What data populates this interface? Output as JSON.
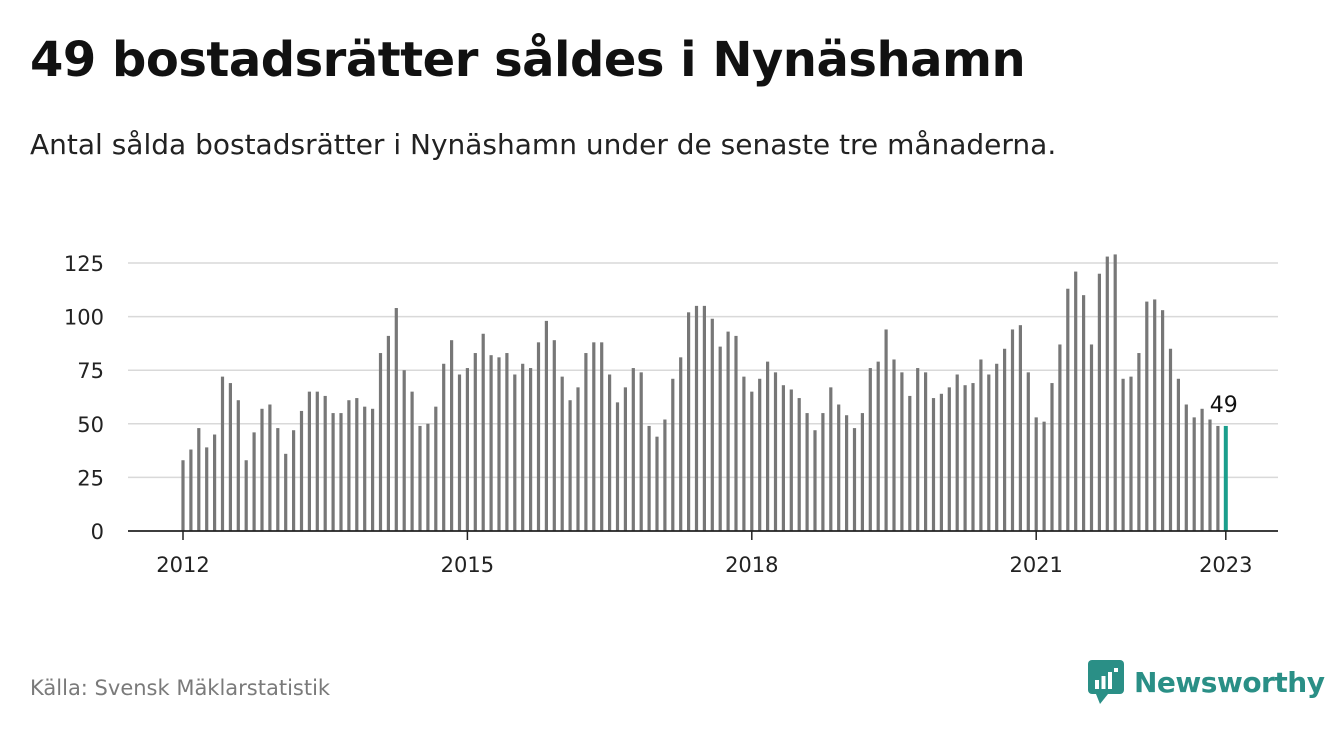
{
  "title": "49 bostadsrätter såldes i Nynäshamn",
  "subtitle": "Antal sålda bostadsrätter i Nynäshamn under de senaste tre månaderna.",
  "source": "Källa: Svensk Mäklarstatistik",
  "brand": "Newsworthy",
  "colors": {
    "bar": "#777777",
    "highlight": "#1a9e8c",
    "grid": "#d9d9d9",
    "brand": "#2a8f86"
  },
  "chart_data": {
    "type": "bar",
    "title": "49 bostadsrätter såldes i Nynäshamn",
    "subtitle": "Antal sålda bostadsrätter i Nynäshamn under de senaste tre månaderna.",
    "xlabel": "",
    "ylabel": "",
    "ylim": [
      0,
      135
    ],
    "yticks": [
      0,
      25,
      50,
      75,
      100,
      125
    ],
    "xticks": [
      "2012",
      "2015",
      "2018",
      "2021",
      "2023"
    ],
    "grid": true,
    "start": "2012-01",
    "end": "2023-01",
    "highlight_label": "49",
    "values": [
      33,
      38,
      48,
      39,
      45,
      72,
      69,
      61,
      33,
      46,
      57,
      59,
      48,
      36,
      47,
      56,
      65,
      65,
      63,
      55,
      55,
      61,
      62,
      58,
      57,
      83,
      91,
      104,
      75,
      65,
      49,
      50,
      58,
      78,
      89,
      73,
      76,
      83,
      92,
      82,
      81,
      83,
      73,
      78,
      76,
      88,
      98,
      89,
      72,
      61,
      67,
      83,
      88,
      88,
      73,
      60,
      67,
      76,
      74,
      49,
      44,
      52,
      71,
      81,
      102,
      105,
      105,
      99,
      86,
      93,
      91,
      72,
      65,
      71,
      79,
      74,
      68,
      66,
      62,
      55,
      47,
      55,
      67,
      59,
      54,
      48,
      55,
      76,
      79,
      94,
      80,
      74,
      63,
      76,
      74,
      62,
      64,
      67,
      73,
      68,
      69,
      80,
      73,
      78,
      85,
      94,
      96,
      74,
      53,
      51,
      69,
      87,
      113,
      121,
      110,
      87,
      120,
      128,
      129,
      71,
      72,
      83,
      107,
      108,
      103,
      85,
      71,
      59,
      53,
      57,
      52,
      49,
      49
    ]
  }
}
